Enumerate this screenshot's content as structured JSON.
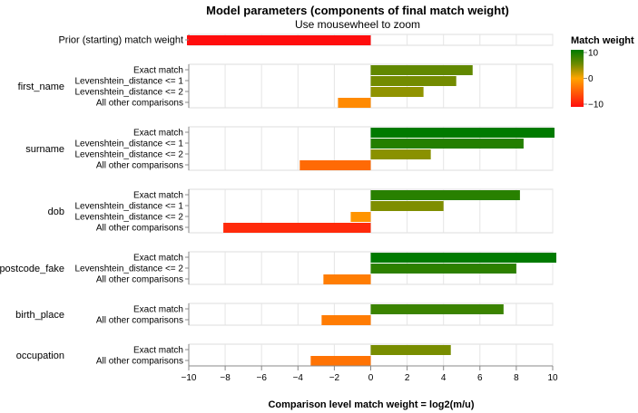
{
  "chart_data": {
    "type": "bar",
    "orientation": "horizontal",
    "title": "Model parameters (components of final match weight)",
    "subtitle": "Use mousewheel to zoom",
    "xlabel": "Comparison level match weight = log2(m/u)",
    "xlim": [
      -10,
      10
    ],
    "xticks": [
      -10,
      -8,
      -6,
      -4,
      -2,
      0,
      2,
      4,
      6,
      8,
      10
    ],
    "grid": true,
    "legend": {
      "title": "Match weight",
      "placement": "top-right",
      "ticks": [
        10,
        0,
        -10
      ],
      "colors": {
        "negative": "#ff0d0d",
        "zero": "#ffa500",
        "positive": "#007a00"
      }
    },
    "groups": [
      {
        "name": "",
        "levels": [
          {
            "label": "Prior (starting) match weight",
            "value": -10.1
          }
        ]
      },
      {
        "name": "first_name",
        "levels": [
          {
            "label": "Exact match",
            "value": 5.6
          },
          {
            "label": "Levenshtein_distance <= 1",
            "value": 4.7
          },
          {
            "label": "Levenshtein_distance <= 2",
            "value": 2.9
          },
          {
            "label": "All other comparisons",
            "value": -1.8
          }
        ]
      },
      {
        "name": "surname",
        "levels": [
          {
            "label": "Exact match",
            "value": 10.1
          },
          {
            "label": "Levenshtein_distance <= 1",
            "value": 8.4
          },
          {
            "label": "Levenshtein_distance <= 2",
            "value": 3.3
          },
          {
            "label": "All other comparisons",
            "value": -3.9
          }
        ]
      },
      {
        "name": "dob",
        "levels": [
          {
            "label": "Exact match",
            "value": 8.2
          },
          {
            "label": "Levenshtein_distance <= 1",
            "value": 4.0
          },
          {
            "label": "Levenshtein_distance <= 2",
            "value": -1.1
          },
          {
            "label": "All other comparisons",
            "value": -8.1
          }
        ]
      },
      {
        "name": "postcode_fake",
        "levels": [
          {
            "label": "Exact match",
            "value": 10.2
          },
          {
            "label": "Levenshtein_distance <= 2",
            "value": 8.0
          },
          {
            "label": "All other comparisons",
            "value": -2.6
          }
        ]
      },
      {
        "name": "birth_place",
        "levels": [
          {
            "label": "Exact match",
            "value": 7.3
          },
          {
            "label": "All other comparisons",
            "value": -2.7
          }
        ]
      },
      {
        "name": "occupation",
        "levels": [
          {
            "label": "Exact match",
            "value": 4.4
          },
          {
            "label": "All other comparisons",
            "value": -3.3
          }
        ]
      }
    ]
  }
}
